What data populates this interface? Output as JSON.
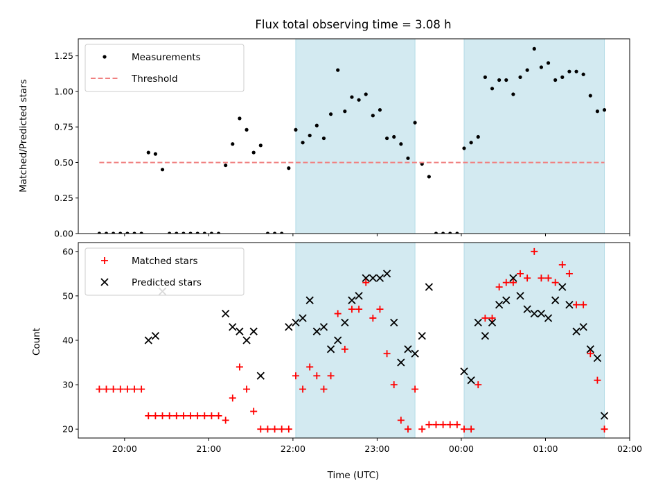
{
  "chart_data": [
    {
      "type": "scatter",
      "title": "Flux total observing time = 3.08 h",
      "ylabel": "Matched/Predicted stars",
      "xlabel": "",
      "xlim": [
        "19:27",
        "02:00"
      ],
      "ylim": [
        0,
        1.37
      ],
      "yticks": [
        "0.00",
        "0.25",
        "0.50",
        "0.75",
        "1.00",
        "1.25"
      ],
      "xticks": [],
      "grid": false,
      "legend": {
        "placement": "top-left",
        "entries": [
          "Measurements",
          "Threshold"
        ]
      },
      "shaded_intervals": [
        [
          "22:02",
          "23:27"
        ],
        [
          "00:02",
          "01:42"
        ]
      ],
      "shade_color": "#d3eaf1",
      "series": [
        {
          "name": "Measurements",
          "color": "#000000",
          "marker": "dot",
          "x": [
            "19:42",
            "19:47",
            "19:52",
            "19:57",
            "20:02",
            "20:07",
            "20:12",
            "20:17",
            "20:22",
            "20:27",
            "20:32",
            "20:37",
            "20:42",
            "20:47",
            "20:52",
            "20:57",
            "21:02",
            "21:07",
            "21:12",
            "21:17",
            "21:22",
            "21:27",
            "21:32",
            "21:37",
            "21:42",
            "21:47",
            "21:52",
            "21:57",
            "22:02",
            "22:07",
            "22:12",
            "22:17",
            "22:22",
            "22:27",
            "22:32",
            "22:37",
            "22:42",
            "22:47",
            "22:52",
            "22:57",
            "23:02",
            "23:07",
            "23:12",
            "23:17",
            "23:22",
            "23:27",
            "23:32",
            "23:37",
            "23:42",
            "23:47",
            "23:52",
            "23:57",
            "00:02",
            "00:07",
            "00:12",
            "00:17",
            "00:22",
            "00:27",
            "00:32",
            "00:37",
            "00:42",
            "00:47",
            "00:52",
            "00:57",
            "01:02",
            "01:07",
            "01:12",
            "01:17",
            "01:22",
            "01:27",
            "01:32",
            "01:37",
            "01:42"
          ],
          "y": [
            0,
            0,
            0,
            0,
            0,
            0,
            0,
            0.57,
            0.56,
            0.45,
            0,
            0,
            0,
            0,
            0,
            0,
            0,
            0,
            0.48,
            0.63,
            0.81,
            0.73,
            0.57,
            0.62,
            0,
            0,
            0,
            0.46,
            0.73,
            0.64,
            0.69,
            0.76,
            0.67,
            0.84,
            1.15,
            0.86,
            0.96,
            0.94,
            0.98,
            0.83,
            0.87,
            0.67,
            0.68,
            0.63,
            0.53,
            0.78,
            0.49,
            0.4,
            0,
            0,
            0,
            0,
            0.6,
            0.64,
            0.68,
            1.1,
            1.02,
            1.08,
            1.08,
            0.98,
            1.1,
            1.15,
            1.3,
            1.17,
            1.2,
            1.08,
            1.1,
            1.14,
            1.14,
            1.12,
            0.97,
            0.86,
            0.87
          ]
        },
        {
          "name": "Threshold",
          "color": "#f08080",
          "style": "dashed",
          "x": [
            "19:42",
            "01:42"
          ],
          "y": [
            0.5,
            0.5
          ]
        }
      ]
    },
    {
      "type": "scatter",
      "title": "",
      "xlabel": "Time (UTC)",
      "ylabel": "Count",
      "xlim": [
        "19:27",
        "02:00"
      ],
      "ylim": [
        18,
        62
      ],
      "yticks": [
        "20",
        "30",
        "40",
        "50",
        "60"
      ],
      "xticks": [
        "20:00",
        "21:00",
        "22:00",
        "23:00",
        "00:00",
        "01:00",
        "02:00"
      ],
      "grid": false,
      "legend": {
        "placement": "top-left",
        "entries": [
          "Matched stars",
          "Predicted stars"
        ]
      },
      "shaded_intervals": [
        [
          "22:02",
          "23:27"
        ],
        [
          "00:02",
          "01:42"
        ]
      ],
      "shade_color": "#d3eaf1",
      "series": [
        {
          "name": "Matched stars",
          "color": "#ff0000",
          "marker": "plus",
          "x": [
            "19:42",
            "19:47",
            "19:52",
            "19:57",
            "20:02",
            "20:07",
            "20:12",
            "20:17",
            "20:22",
            "20:27",
            "20:32",
            "20:37",
            "20:42",
            "20:47",
            "20:52",
            "20:57",
            "21:02",
            "21:07",
            "21:12",
            "21:17",
            "21:22",
            "21:27",
            "21:32",
            "21:37",
            "21:42",
            "21:47",
            "21:52",
            "21:57",
            "22:02",
            "22:07",
            "22:12",
            "22:17",
            "22:22",
            "22:27",
            "22:32",
            "22:37",
            "22:42",
            "22:47",
            "22:52",
            "22:57",
            "23:02",
            "23:07",
            "23:12",
            "23:17",
            "23:22",
            "23:27",
            "23:32",
            "23:37",
            "23:42",
            "23:47",
            "23:52",
            "23:57",
            "00:02",
            "00:07",
            "00:12",
            "00:17",
            "00:22",
            "00:27",
            "00:32",
            "00:37",
            "00:42",
            "00:47",
            "00:52",
            "00:57",
            "01:02",
            "01:07",
            "01:12",
            "01:17",
            "01:22",
            "01:27",
            "01:32",
            "01:37",
            "01:42"
          ],
          "y": [
            29,
            29,
            29,
            29,
            29,
            29,
            29,
            23,
            23,
            23,
            23,
            23,
            23,
            23,
            23,
            23,
            23,
            23,
            22,
            27,
            34,
            29,
            24,
            20,
            20,
            20,
            20,
            20,
            32,
            29,
            34,
            32,
            29,
            32,
            46,
            38,
            47,
            47,
            53,
            45,
            47,
            37,
            30,
            22,
            20,
            29,
            20,
            21,
            21,
            21,
            21,
            21,
            20,
            20,
            30,
            45,
            45,
            52,
            53,
            53,
            55,
            54,
            60,
            54,
            54,
            53,
            57,
            55,
            48,
            48,
            37,
            31,
            20
          ]
        },
        {
          "name": "Predicted stars",
          "color": "#000000",
          "marker": "x",
          "x": [
            "20:17",
            "20:22",
            "20:27",
            "21:12",
            "21:17",
            "21:22",
            "21:27",
            "21:32",
            "21:37",
            "21:57",
            "22:02",
            "22:07",
            "22:12",
            "22:17",
            "22:22",
            "22:27",
            "22:32",
            "22:37",
            "22:42",
            "22:47",
            "22:52",
            "22:57",
            "23:02",
            "23:07",
            "23:12",
            "23:17",
            "23:22",
            "23:27",
            "23:32",
            "23:37",
            "00:02",
            "00:07",
            "00:12",
            "00:17",
            "00:22",
            "00:27",
            "00:32",
            "00:37",
            "00:42",
            "00:47",
            "00:52",
            "00:57",
            "01:02",
            "01:07",
            "01:12",
            "01:17",
            "01:22",
            "01:27",
            "01:32",
            "01:37",
            "01:42"
          ],
          "y": [
            40,
            41,
            51,
            46,
            43,
            42,
            40,
            42,
            32,
            43,
            44,
            45,
            49,
            42,
            43,
            38,
            40,
            44,
            49,
            50,
            54,
            54,
            54,
            55,
            44,
            35,
            38,
            37,
            41,
            52,
            33,
            31,
            44,
            41,
            44,
            48,
            49,
            54,
            50,
            47,
            46,
            46,
            45,
            49,
            52,
            48,
            42,
            43,
            38,
            36,
            23
          ]
        }
      ]
    }
  ]
}
